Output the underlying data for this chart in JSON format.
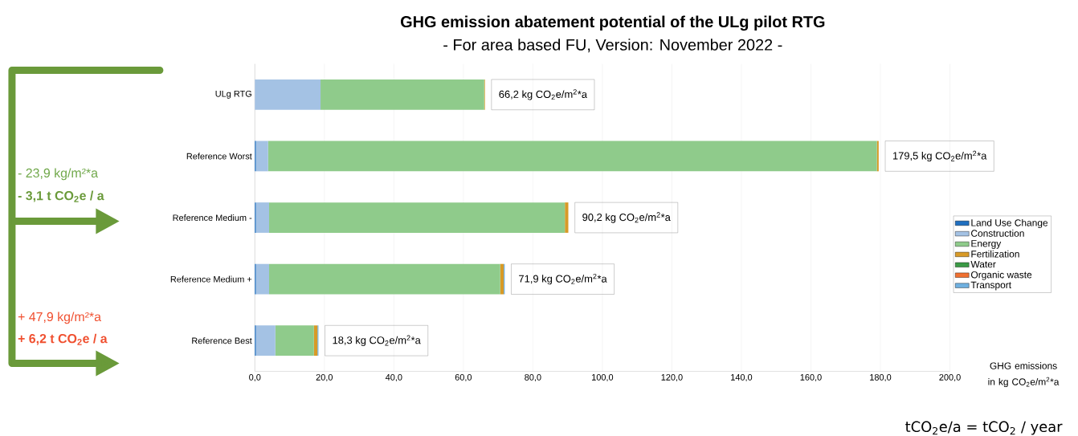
{
  "chart_data": {
    "type": "bar",
    "orientation": "horizontal",
    "stacked": true,
    "title": "GHG emission abatement potential of the ULg pilot RTG",
    "subtitle": "-  For area based FU, Version: November 2022 -",
    "xlabel": "GHG emissions in kg CO$_{2}$e/m$^{2}$*a",
    "categories": [
      "ULg RTG",
      "Reference  Worst",
      "Reference Medium -",
      "Reference  Medium +",
      "Reference Best"
    ],
    "series": [
      {
        "name": "Land Use Change",
        "color": "#1f6fc0",
        "values": [
          0,
          0.3,
          0.3,
          0.3,
          0.3
        ]
      },
      {
        "name": "Construction",
        "color": "#a4c2e4",
        "values": [
          18.9,
          3.5,
          3.8,
          3.8,
          5.6
        ]
      },
      {
        "name": "Energy",
        "color": "#8fcb8b",
        "values": [
          47.1,
          175.2,
          85.1,
          66.5,
          11.1
        ]
      },
      {
        "name": "Fertilization",
        "color": "#d89a27",
        "values": [
          0.2,
          0.5,
          1.0,
          1.0,
          1.0
        ]
      },
      {
        "name": "Water",
        "color": "#3a9a45",
        "values": [
          0,
          0,
          0,
          0,
          0
        ]
      },
      {
        "name": "Organic waste",
        "color": "#f07030",
        "values": [
          0,
          0,
          0,
          0,
          0
        ]
      },
      {
        "name": "Transport",
        "color": "#6fb0e0",
        "values": [
          0,
          0,
          0,
          0.3,
          0.3
        ]
      }
    ],
    "totals": [
      "66,2 kg CO$_{2}$e/m$^{2}$*a",
      "179,5 kg CO$_{2}$e/m$^{2}$*a",
      "90,2 kg CO$_{2}$e/m$^{2}$*a",
      "71,9 kg CO$_{2}$e/m$^{2}$*a",
      "18,3 kg CO$_{2}$e/m$^{2}$*a"
    ],
    "xlim": [
      0,
      200
    ],
    "xticks": [
      {
        "value": 0,
        "label": "0,0"
      },
      {
        "value": 20,
        "label": "20,0"
      },
      {
        "value": 40,
        "label": "40,0"
      },
      {
        "value": 60,
        "label": "60,0"
      },
      {
        "value": 80,
        "label": "80,0"
      },
      {
        "value": 100,
        "label": "100,0"
      },
      {
        "value": 120,
        "label": "120,0"
      },
      {
        "value": 140,
        "label": "140,0"
      },
      {
        "value": 160,
        "label": "160,0"
      },
      {
        "value": 180,
        "label": "180,0"
      },
      {
        "value": 200,
        "label": "200,0"
      }
    ],
    "grid": "x",
    "legend": "right",
    "annotations": [
      "- 23,9 kg/m²*a",
      "- 3,1 t CO$_{2}$e / a",
      "+ 47,9 kg/m²*a",
      "+ 6,2 t CO$_{2}$e / a",
      "tCO$_{2}$e/a = tCO$_{2}$ / year"
    ]
  }
}
